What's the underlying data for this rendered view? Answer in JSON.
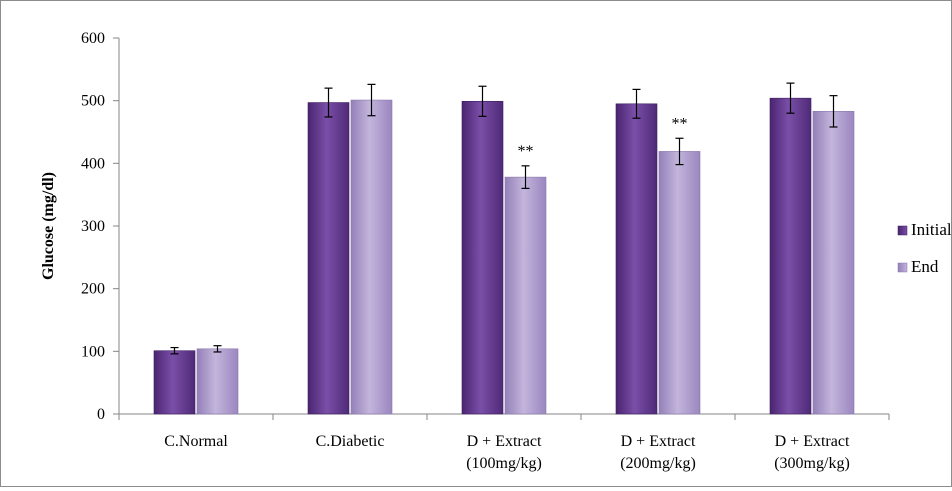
{
  "chart_data": {
    "type": "bar",
    "title": "",
    "xlabel": "",
    "ylabel": "Glucose (mg/dl)",
    "ylim": [
      0,
      600
    ],
    "yticks": [
      0,
      100,
      200,
      300,
      400,
      500,
      600
    ],
    "grid": false,
    "legend_position": "right",
    "categories": [
      [
        "C.Normal"
      ],
      [
        "C.Diabetic"
      ],
      [
        "D + Extract",
        "(100mg/kg)"
      ],
      [
        "D + Extract",
        "(200mg/kg)"
      ],
      [
        "D + Extract",
        "(300mg/kg)"
      ]
    ],
    "series": [
      {
        "name": "Initial",
        "color": "#6a3f96",
        "values": [
          101,
          497,
          499,
          495,
          504
        ],
        "errors": [
          5,
          23,
          24,
          23,
          24
        ]
      },
      {
        "name": "End",
        "color": "#ab98c9",
        "values": [
          104,
          501,
          378,
          419,
          483
        ],
        "errors": [
          5,
          25,
          18,
          21,
          25
        ]
      }
    ],
    "annotations": [
      {
        "series": "End",
        "category_index": 2,
        "text": "**"
      },
      {
        "series": "End",
        "category_index": 3,
        "text": "**"
      }
    ]
  }
}
